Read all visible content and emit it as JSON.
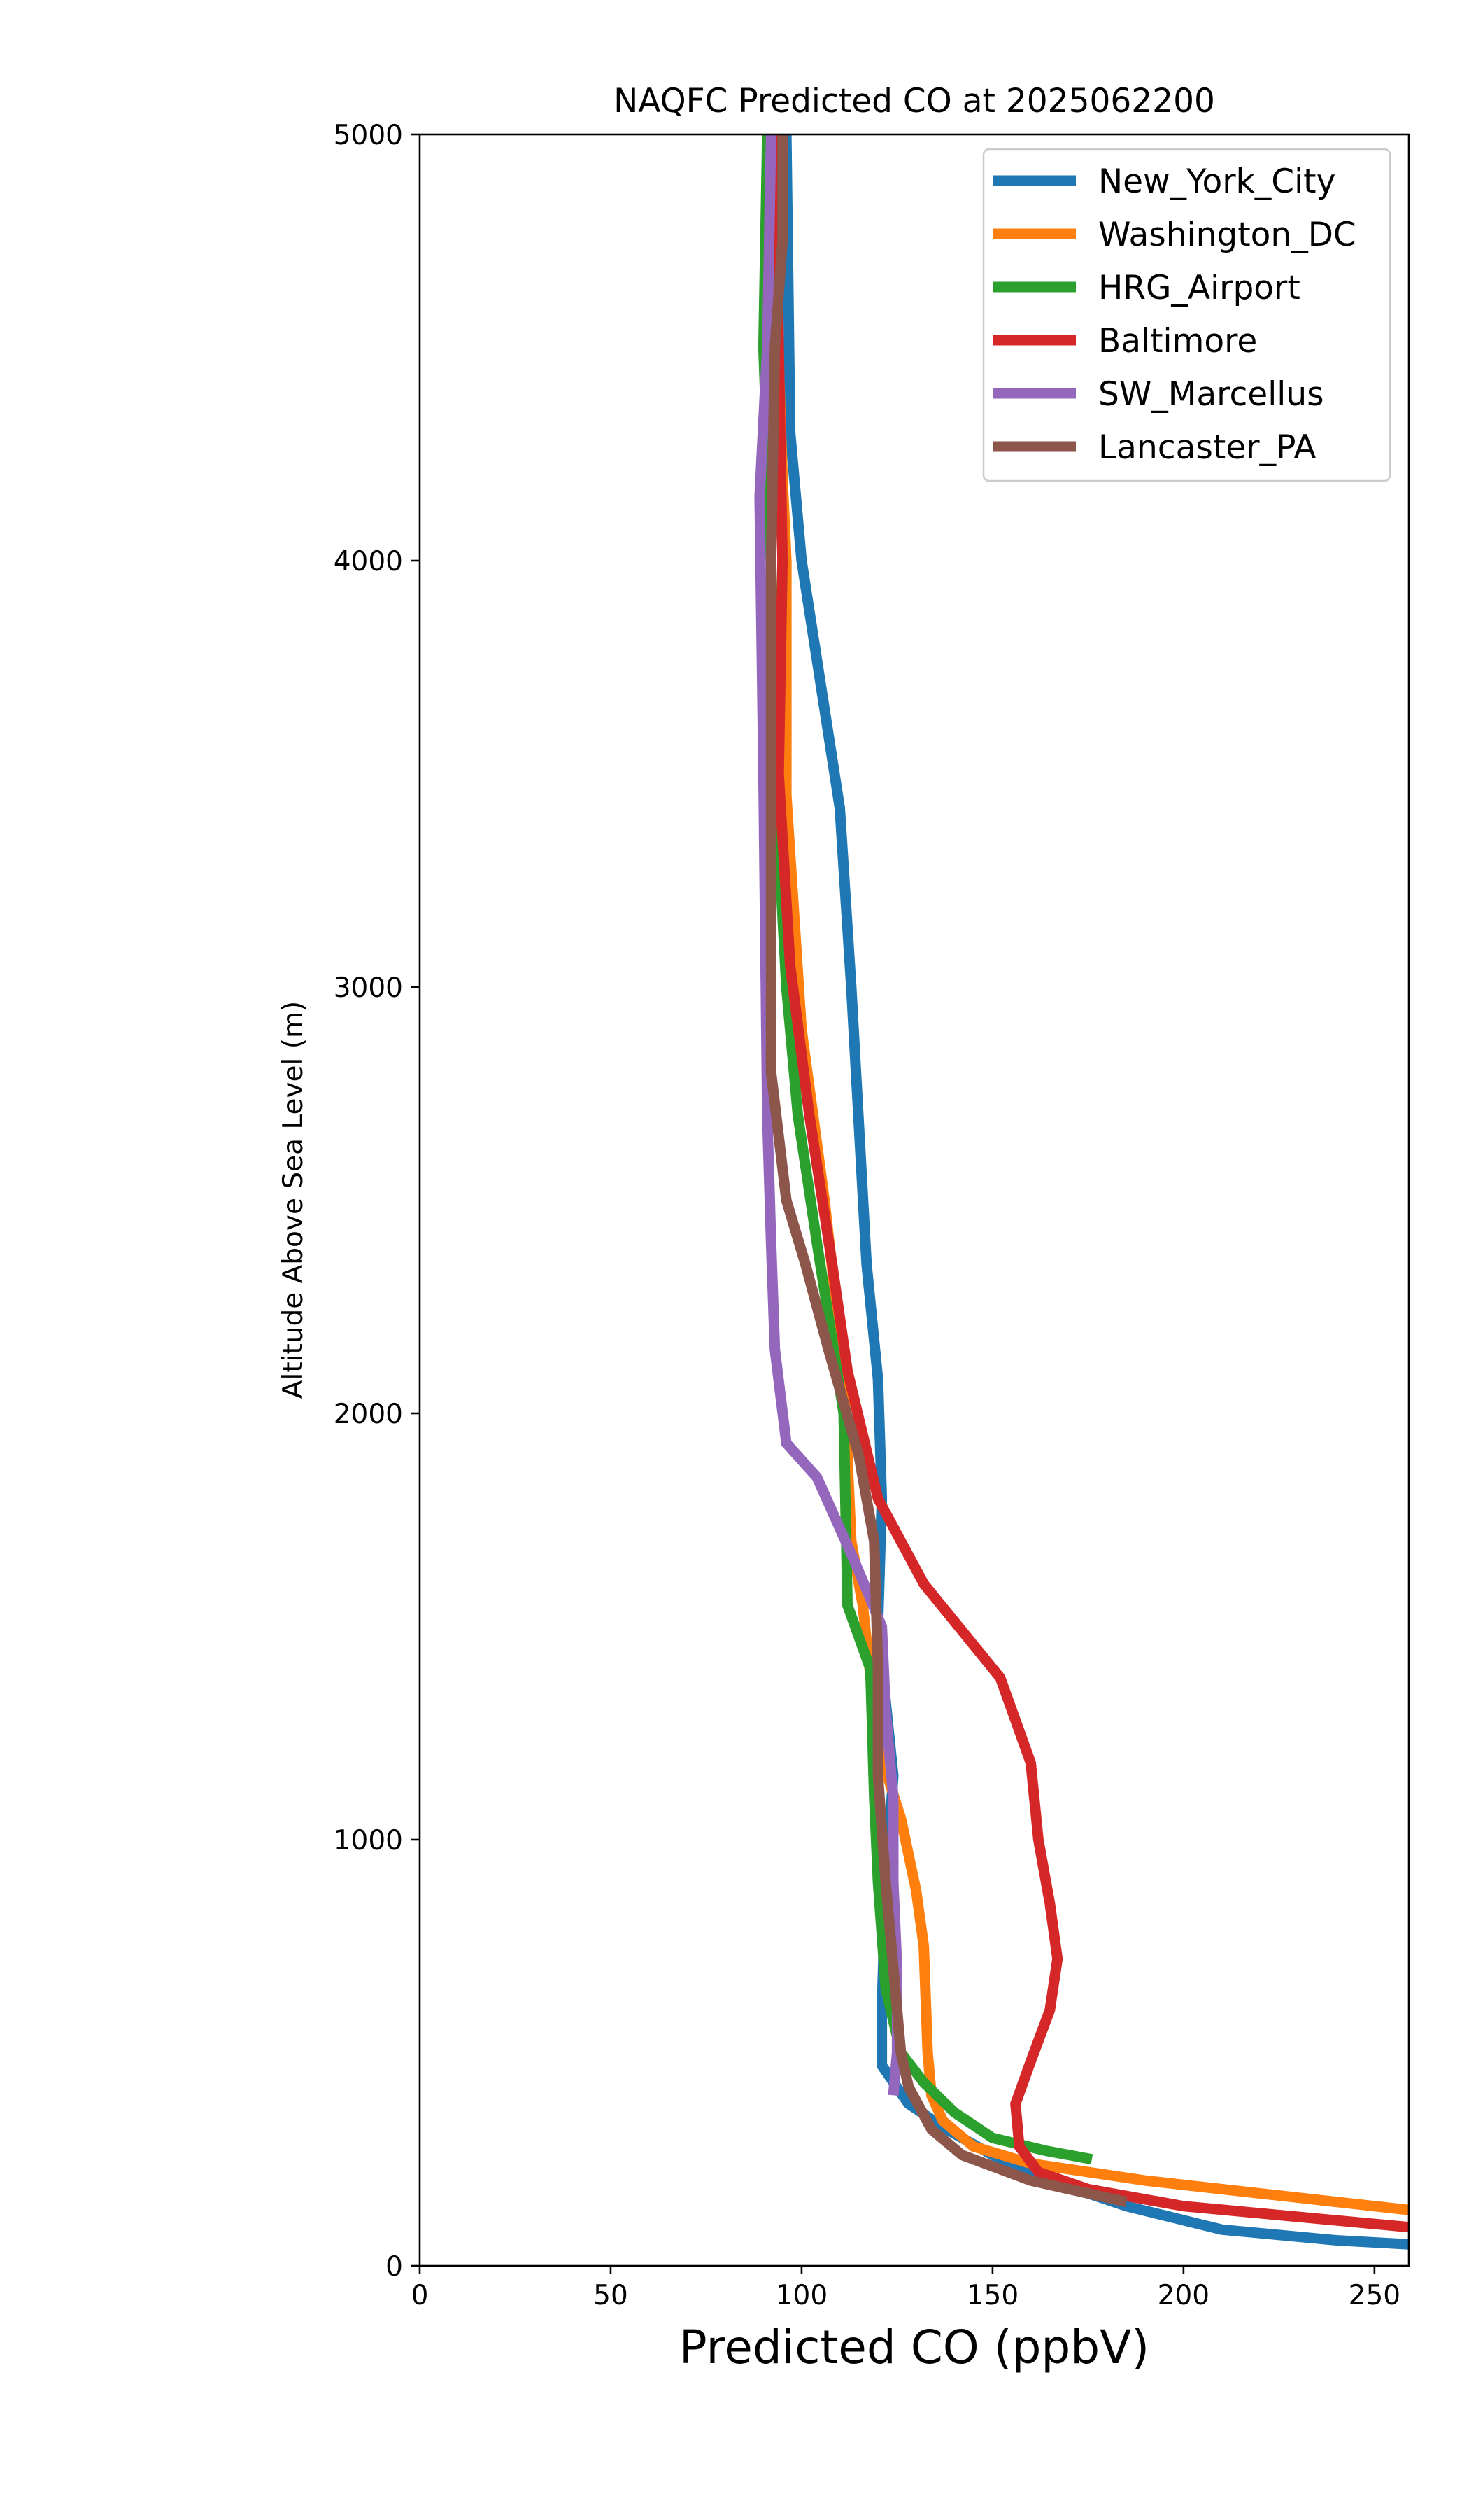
{
  "chart_data": {
    "type": "line",
    "title": "NAQFC Predicted CO at 2025062200",
    "xlabel": "Predicted CO (ppbV)",
    "ylabel": "Altitude Above Sea Level (m)",
    "xlim": [
      0,
      259
    ],
    "ylim": [
      0,
      5000
    ],
    "x_ticks": [
      0,
      50,
      100,
      150,
      200,
      250
    ],
    "y_ticks": [
      0,
      1000,
      2000,
      3000,
      4000,
      5000
    ],
    "x_tick_labels": [
      "0",
      "50",
      "100",
      "150",
      "200",
      "250"
    ],
    "y_tick_labels": [
      "0",
      "1000",
      "2000",
      "3000",
      "4000",
      "5000"
    ],
    "grid": false,
    "legend_position": "top-right",
    "series": [
      {
        "name": "New_York_City",
        "color": "#1f77b4",
        "points": [
          [
            260,
            50
          ],
          [
            240,
            60
          ],
          [
            210,
            85
          ],
          [
            185,
            140
          ],
          [
            165,
            200
          ],
          [
            150,
            260
          ],
          [
            138,
            320
          ],
          [
            128,
            380
          ],
          [
            121,
            470
          ],
          [
            121,
            600
          ],
          [
            122,
            900
          ],
          [
            124,
            1150
          ],
          [
            120,
            1500
          ],
          [
            121,
            1800
          ],
          [
            120,
            2080
          ],
          [
            117,
            2350
          ],
          [
            113,
            3000
          ],
          [
            110,
            3420
          ],
          [
            100,
            4000
          ],
          [
            97,
            4300
          ],
          [
            96,
            5000
          ]
        ]
      },
      {
        "name": "Washington_DC",
        "color": "#ff7f0e",
        "points": [
          [
            260,
            130
          ],
          [
            230,
            160
          ],
          [
            190,
            200
          ],
          [
            160,
            240
          ],
          [
            145,
            280
          ],
          [
            137,
            340
          ],
          [
            134,
            400
          ],
          [
            133,
            500
          ],
          [
            132,
            750
          ],
          [
            130,
            880
          ],
          [
            126,
            1050
          ],
          [
            120,
            1220
          ],
          [
            116,
            1550
          ],
          [
            113,
            1700
          ],
          [
            111,
            2100
          ],
          [
            106,
            2500
          ],
          [
            100,
            2900
          ],
          [
            96,
            3450
          ],
          [
            96,
            4000
          ],
          [
            95,
            4200
          ],
          [
            92,
            5000
          ]
        ]
      },
      {
        "name": "HRG_Airport",
        "color": "#2ca02c",
        "points": [
          [
            176,
            250
          ],
          [
            164,
            270
          ],
          [
            150,
            300
          ],
          [
            140,
            360
          ],
          [
            132,
            430
          ],
          [
            126,
            500
          ],
          [
            122,
            650
          ],
          [
            120,
            900
          ],
          [
            119,
            1100
          ],
          [
            118,
            1400
          ],
          [
            112,
            1550
          ],
          [
            111,
            2000
          ],
          [
            104,
            2400
          ],
          [
            99,
            2700
          ],
          [
            96,
            3000
          ],
          [
            93,
            3500
          ],
          [
            92,
            4000
          ],
          [
            90,
            4500
          ],
          [
            91,
            5000
          ]
        ]
      },
      {
        "name": "Baltimore",
        "color": "#d62728",
        "points": [
          [
            260,
            90
          ],
          [
            230,
            115
          ],
          [
            200,
            140
          ],
          [
            175,
            180
          ],
          [
            162,
            220
          ],
          [
            157,
            280
          ],
          [
            156,
            380
          ],
          [
            160,
            480
          ],
          [
            165,
            600
          ],
          [
            167,
            720
          ],
          [
            165,
            850
          ],
          [
            162,
            1000
          ],
          [
            160,
            1180
          ],
          [
            152,
            1380
          ],
          [
            132,
            1600
          ],
          [
            120,
            1800
          ],
          [
            112,
            2100
          ],
          [
            108,
            2350
          ],
          [
            102,
            2700
          ],
          [
            97,
            3050
          ],
          [
            94,
            3500
          ],
          [
            95,
            4000
          ],
          [
            94,
            4500
          ],
          [
            93,
            5000
          ]
        ]
      },
      {
        "name": "SW_Marcellus",
        "color": "#9467bd",
        "points": [
          [
            124,
            400
          ],
          [
            125,
            500
          ],
          [
            125,
            700
          ],
          [
            124,
            900
          ],
          [
            124,
            1100
          ],
          [
            122,
            1300
          ],
          [
            121,
            1500
          ],
          [
            114,
            1650
          ],
          [
            104,
            1850
          ],
          [
            96,
            1930
          ],
          [
            93,
            2150
          ],
          [
            92,
            2400
          ],
          [
            91,
            2700
          ],
          [
            90,
            3500
          ],
          [
            89,
            4150
          ],
          [
            91,
            4500
          ],
          [
            92,
            5000
          ]
        ]
      },
      {
        "name": "Lancaster_PA",
        "color": "#8c564b",
        "points": [
          [
            185,
            150
          ],
          [
            160,
            200
          ],
          [
            142,
            260
          ],
          [
            134,
            320
          ],
          [
            128,
            420
          ],
          [
            126,
            500
          ],
          [
            124,
            700
          ],
          [
            122,
            900
          ],
          [
            120,
            1150
          ],
          [
            120,
            1400
          ],
          [
            119,
            1700
          ],
          [
            115,
            1900
          ],
          [
            107,
            2150
          ],
          [
            101,
            2350
          ],
          [
            96,
            2500
          ],
          [
            92,
            2800
          ],
          [
            92,
            3500
          ],
          [
            92,
            4000
          ],
          [
            93,
            4500
          ],
          [
            95,
            4750
          ],
          [
            95,
            5000
          ]
        ]
      }
    ]
  }
}
